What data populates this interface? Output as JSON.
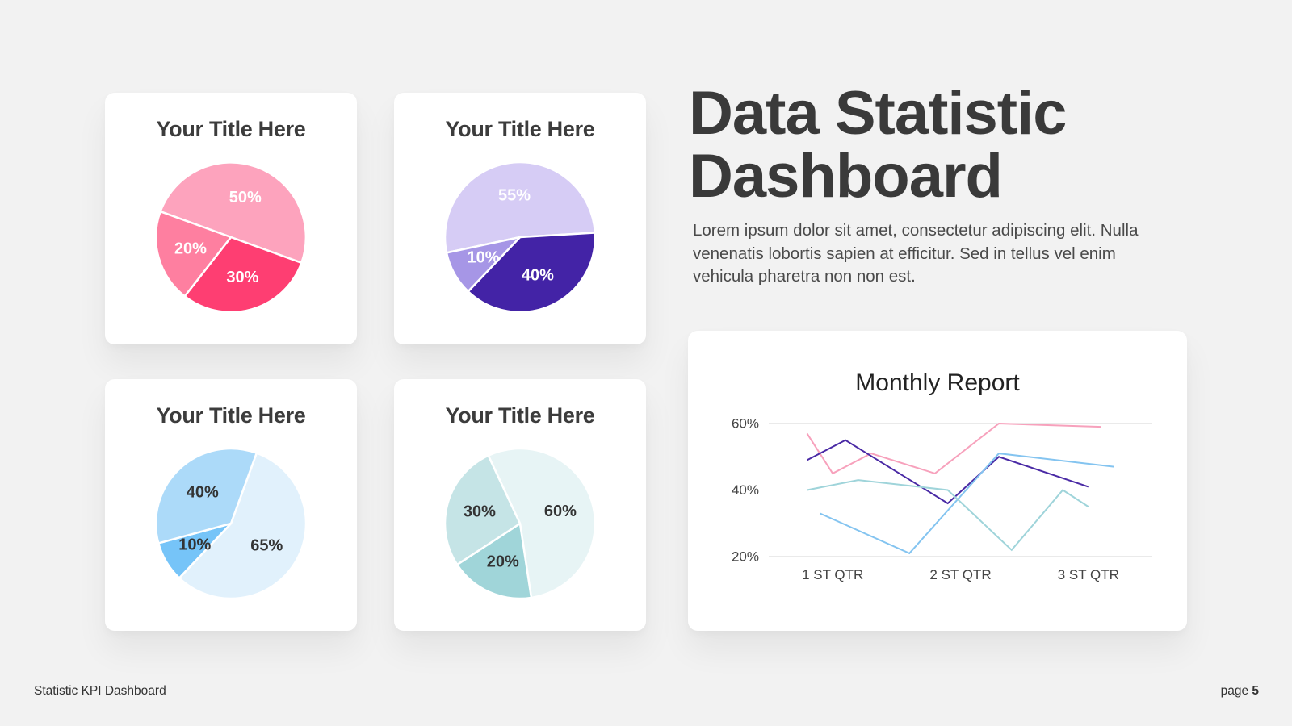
{
  "headline": {
    "line1": "Data Statistic",
    "line2": "Dashboard"
  },
  "description": "Lorem ipsum dolor sit amet, consectetur adipiscing elit. Nulla venenatis lobortis sapien at efficitur. Sed in tellus vel enim vehicula pharetra non non est.",
  "footer": {
    "left": "Statistic KPI Dashboard",
    "page_label": "page",
    "page_number": "5"
  },
  "chart_data": [
    {
      "type": "pie",
      "title": "Your Title Here",
      "slices": [
        {
          "label": "50%",
          "value": 50,
          "color": "#fda3bd",
          "text_color": "#ffffff"
        },
        {
          "label": "30%",
          "value": 30,
          "color": "#fe3e72",
          "text_color": "#ffffff"
        },
        {
          "label": "20%",
          "value": 20,
          "color": "#fe7fa0",
          "text_color": "#ffffff"
        }
      ]
    },
    {
      "type": "pie",
      "title": "Your Title Here",
      "slices": [
        {
          "label": "55%",
          "value": 55,
          "color": "#d6ccf5",
          "text_color": "#ffffff"
        },
        {
          "label": "40%",
          "value": 40,
          "color": "#4323a6",
          "text_color": "#ffffff"
        },
        {
          "label": "10%",
          "value": 10,
          "color": "#a696e6",
          "text_color": "#ffffff"
        }
      ]
    },
    {
      "type": "pie",
      "title": "Your Title Here",
      "slices": [
        {
          "label": "65%",
          "value": 65,
          "color": "#e1f1fc",
          "text_color": "#333333"
        },
        {
          "label": "10%",
          "value": 10,
          "color": "#76c4f8",
          "text_color": "#333333"
        },
        {
          "label": "40%",
          "value": 40,
          "color": "#acdaf9",
          "text_color": "#333333"
        }
      ]
    },
    {
      "type": "pie",
      "title": "Your Title Here",
      "slices": [
        {
          "label": "60%",
          "value": 60,
          "color": "#e7f4f5",
          "text_color": "#333333"
        },
        {
          "label": "20%",
          "value": 20,
          "color": "#a0d5d9",
          "text_color": "#333333"
        },
        {
          "label": "30%",
          "value": 30,
          "color": "#c5e4e6",
          "text_color": "#333333"
        }
      ]
    },
    {
      "type": "line",
      "title": "Monthly Report",
      "categories": [
        "1 ST QTR",
        "2 ST QTR",
        "3 ST QTR"
      ],
      "x_range": [
        0,
        15
      ],
      "yticks": [
        "20%",
        "40%",
        "60%"
      ],
      "ylim": [
        20,
        60
      ],
      "grid": true,
      "series": [
        {
          "color": "#f7a1bc",
          "x": [
            1.5,
            2.5,
            4.0,
            6.5,
            9.0,
            13.0
          ],
          "y": [
            57,
            45,
            51,
            45,
            60,
            59
          ]
        },
        {
          "color": "#4a2aa5",
          "x": [
            1.5,
            3.0,
            7.0,
            9.0,
            12.5
          ],
          "y": [
            49,
            55,
            36,
            50,
            41
          ]
        },
        {
          "color": "#84c4f0",
          "x": [
            2.0,
            5.5,
            9.0,
            13.5
          ],
          "y": [
            33,
            21,
            51,
            47
          ]
        },
        {
          "color": "#9fd4da",
          "x": [
            1.5,
            3.5,
            7.0,
            9.5,
            11.5,
            12.5
          ],
          "y": [
            40,
            43,
            40,
            22,
            40,
            35
          ]
        }
      ]
    }
  ]
}
